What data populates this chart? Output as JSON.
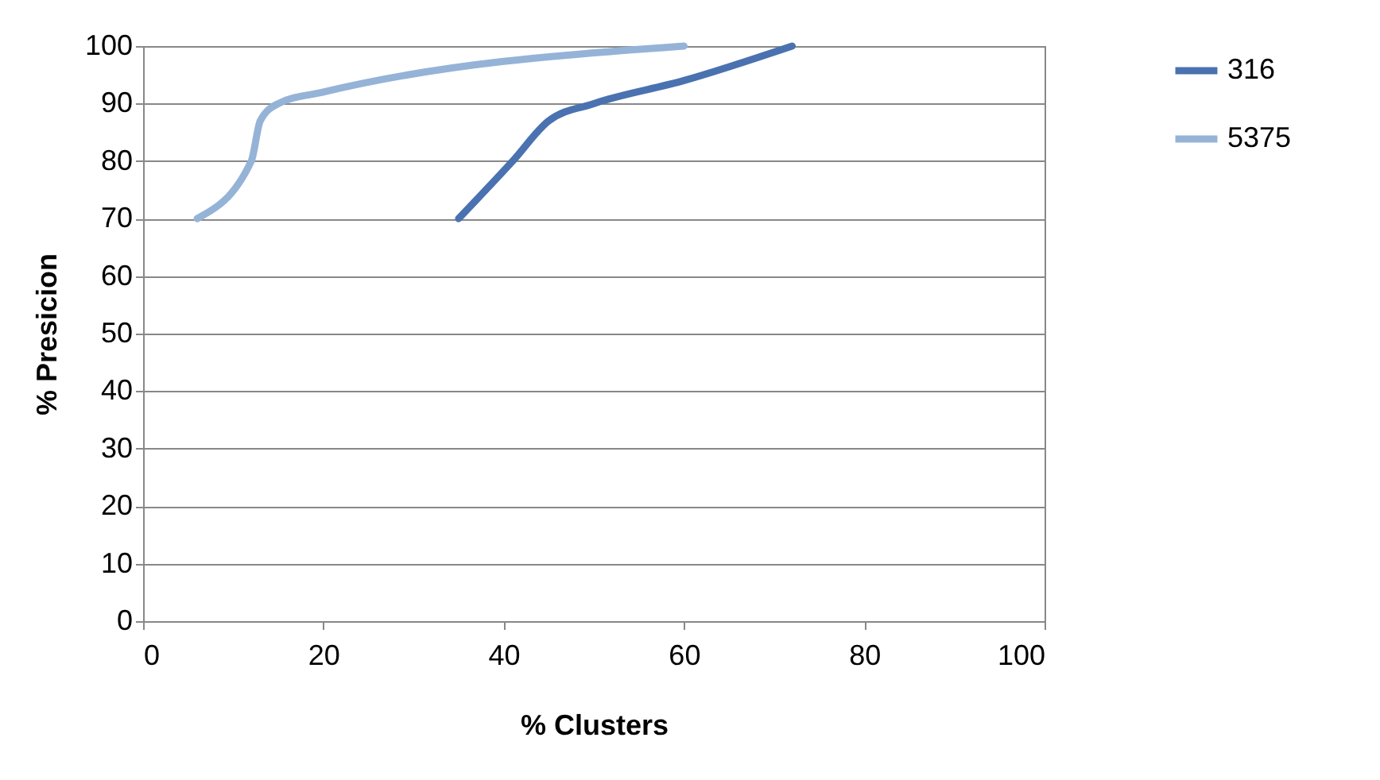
{
  "chart_data": {
    "type": "line",
    "xlabel": "% Clusters",
    "ylabel": "% Presicion",
    "series": [
      {
        "name": "316",
        "color": "#4a72b0",
        "x": [
          35,
          41,
          45,
          50,
          60,
          72
        ],
        "values": [
          70,
          80,
          87,
          90,
          94,
          100
        ]
      },
      {
        "name": "5375",
        "color": "#95b3d7",
        "x": [
          6,
          12,
          13,
          15,
          20,
          60
        ],
        "values": [
          70,
          80,
          87,
          90,
          92,
          100
        ]
      }
    ],
    "xlim": [
      0,
      100
    ],
    "xticks": [
      0,
      20,
      40,
      60,
      80,
      100
    ],
    "ylim": [
      0,
      100
    ],
    "yticks": [
      0,
      10,
      20,
      30,
      40,
      50,
      60,
      70,
      80,
      90,
      100
    ],
    "grid": "y",
    "legend": "right",
    "line_style": "solid"
  }
}
